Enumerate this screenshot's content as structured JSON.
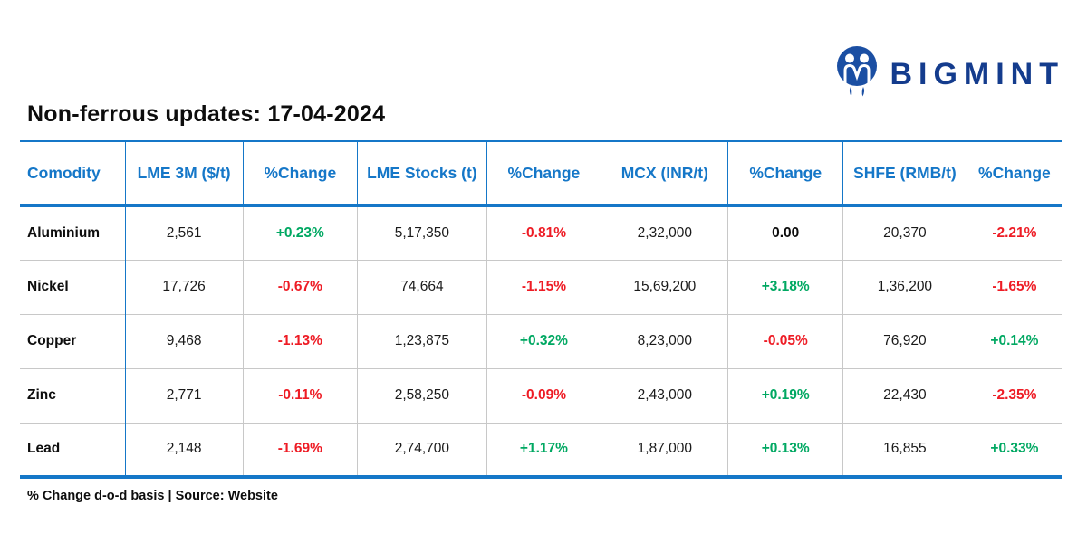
{
  "brand": {
    "name": "BIGMINT",
    "icon": "bigmint-people-logo-icon",
    "navy": "#143c8d",
    "icon_blue": "#1b4fa3"
  },
  "title": "Non-ferrous updates: 17-04-2024",
  "footer_note": "% Change d-o-d basis | Source: Website",
  "colors": {
    "header_blue": "#1577c8",
    "positive": "#00a862",
    "negative": "#ee1c25",
    "neutral": "#0d0d0d"
  },
  "chart_data": {
    "type": "table",
    "columns": [
      "Comodity",
      "LME 3M ($/t)",
      "%Change",
      "LME Stocks (t)",
      "%Change",
      "MCX (INR/t)",
      "%Change",
      "SHFE (RMB/t)",
      "%Change"
    ],
    "rows": [
      [
        {
          "value": "Aluminium",
          "kind": "name"
        },
        {
          "value": "2,561",
          "kind": "num"
        },
        {
          "value": "+0.23%",
          "kind": "up"
        },
        {
          "value": "5,17,350",
          "kind": "num"
        },
        {
          "value": "-0.81%",
          "kind": "down"
        },
        {
          "value": "2,32,000",
          "kind": "num"
        },
        {
          "value": "0.00",
          "kind": "flat"
        },
        {
          "value": "20,370",
          "kind": "num"
        },
        {
          "value": "-2.21%",
          "kind": "down"
        }
      ],
      [
        {
          "value": "Nickel",
          "kind": "name"
        },
        {
          "value": "17,726",
          "kind": "num"
        },
        {
          "value": "-0.67%",
          "kind": "down"
        },
        {
          "value": "74,664",
          "kind": "num"
        },
        {
          "value": "-1.15%",
          "kind": "down"
        },
        {
          "value": "15,69,200",
          "kind": "num"
        },
        {
          "value": "+3.18%",
          "kind": "up"
        },
        {
          "value": "1,36,200",
          "kind": "num"
        },
        {
          "value": "-1.65%",
          "kind": "down"
        }
      ],
      [
        {
          "value": "Copper",
          "kind": "name"
        },
        {
          "value": "9,468",
          "kind": "num"
        },
        {
          "value": "-1.13%",
          "kind": "down"
        },
        {
          "value": "1,23,875",
          "kind": "num"
        },
        {
          "value": "+0.32%",
          "kind": "up"
        },
        {
          "value": "8,23,000",
          "kind": "num"
        },
        {
          "value": "-0.05%",
          "kind": "down"
        },
        {
          "value": "76,920",
          "kind": "num"
        },
        {
          "value": "+0.14%",
          "kind": "up"
        }
      ],
      [
        {
          "value": "Zinc",
          "kind": "name"
        },
        {
          "value": "2,771",
          "kind": "num"
        },
        {
          "value": "-0.11%",
          "kind": "down"
        },
        {
          "value": "2,58,250",
          "kind": "num"
        },
        {
          "value": "-0.09%",
          "kind": "down"
        },
        {
          "value": "2,43,000",
          "kind": "num"
        },
        {
          "value": "+0.19%",
          "kind": "up"
        },
        {
          "value": "22,430",
          "kind": "num"
        },
        {
          "value": "-2.35%",
          "kind": "down"
        }
      ],
      [
        {
          "value": "Lead",
          "kind": "name"
        },
        {
          "value": "2,148",
          "kind": "num"
        },
        {
          "value": "-1.69%",
          "kind": "down"
        },
        {
          "value": "2,74,700",
          "kind": "num"
        },
        {
          "value": "+1.17%",
          "kind": "up"
        },
        {
          "value": "1,87,000",
          "kind": "num"
        },
        {
          "value": "+0.13%",
          "kind": "up"
        },
        {
          "value": "16,855",
          "kind": "num"
        },
        {
          "value": "+0.33%",
          "kind": "up"
        }
      ]
    ]
  }
}
